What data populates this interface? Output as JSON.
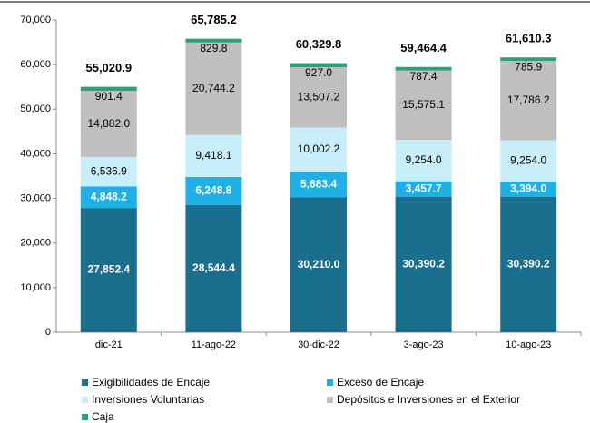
{
  "chart_data": {
    "type": "stacked_bar",
    "categories": [
      "dic-21",
      "11-ago-22",
      "30-dic-22",
      "3-ago-23",
      "10-ago-23"
    ],
    "series": [
      {
        "name": "Exigibilidades de Encaje",
        "color": "#1b6f8e",
        "values": [
          27852.4,
          28544.4,
          30210.0,
          30390.2,
          30390.2
        ],
        "value_labels": [
          "27,852.4",
          "28,544.4",
          "30,210.0",
          "30,390.2",
          "30,390.2"
        ]
      },
      {
        "name": "Exceso de Encaje",
        "color": "#1fb0e6",
        "values": [
          4848.2,
          6248.8,
          5683.4,
          3457.7,
          3394.0
        ],
        "value_labels": [
          "4,848.2",
          "6,248.8",
          "5,683.4",
          "3,457.7",
          "3,394.0"
        ]
      },
      {
        "name": "Inversiones Voluntarias",
        "color": "#c8eefa",
        "values": [
          6536.9,
          9418.1,
          10002.2,
          9254.0,
          9254.0
        ],
        "value_labels": [
          "6,536.9",
          "9,418.1",
          "10,002.2",
          "9,254.0",
          "9,254.0"
        ]
      },
      {
        "name": "Depósitos e Inversiones en el Exterior",
        "color": "#bfbfbf",
        "values": [
          14882.0,
          20744.2,
          13507.2,
          15575.1,
          17786.2
        ],
        "value_labels": [
          "14,882.0",
          "20,744.2",
          "13,507.2",
          "15,575.1",
          "17,786.2"
        ]
      },
      {
        "name": "Caja",
        "color": "#2f9e7b",
        "values": [
          901.4,
          829.8,
          927.0,
          787.4,
          785.9
        ],
        "value_labels": [
          "901.4",
          "829.8",
          "927.0",
          "787.4",
          "785.9"
        ]
      }
    ],
    "totals": {
      "values": [
        55020.9,
        65785.2,
        60329.8,
        59464.4,
        61610.3
      ],
      "value_labels": [
        "55,020.9",
        "65,785.2",
        "60,329.8",
        "59,464.4",
        "61,610.3"
      ]
    },
    "ylim": [
      0,
      70000
    ],
    "yticks": [
      0,
      {
        "value": 10000,
        "label": "10,000"
      },
      {
        "value": 20000,
        "label": "20,000"
      },
      {
        "value": 30000,
        "label": "30,000"
      },
      {
        "value": 40000,
        "label": "40,000"
      },
      {
        "value": 50000,
        "label": "50,000"
      },
      {
        "value": 60000,
        "label": "60,000"
      },
      {
        "value": 70000,
        "label": "70,000"
      }
    ],
    "grid": false
  }
}
